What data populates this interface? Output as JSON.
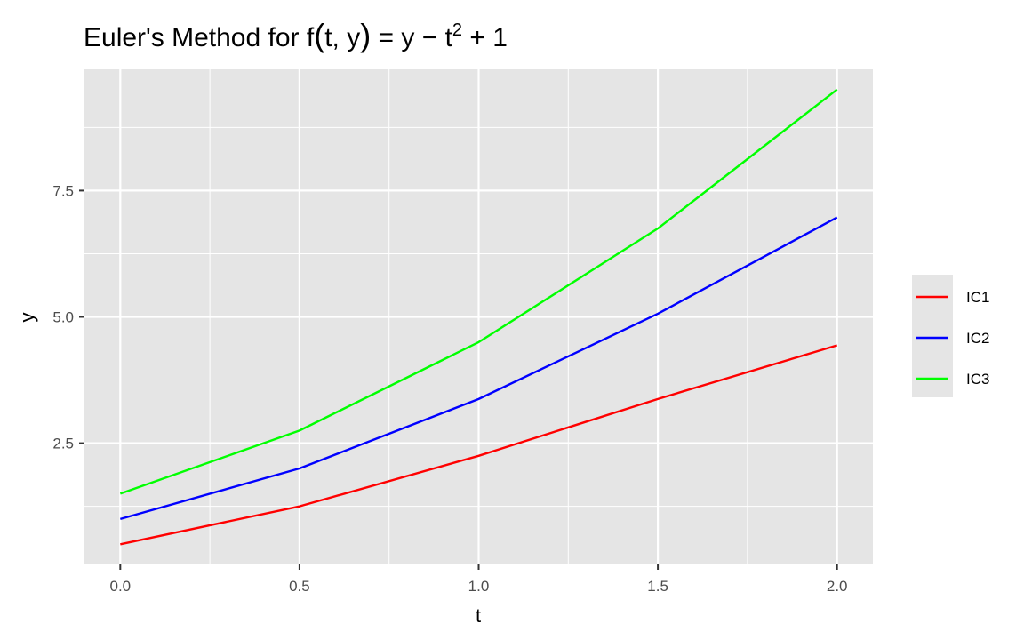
{
  "chart_data": {
    "type": "line",
    "title": "Euler's Method for f(t, y) = y − t² + 1",
    "title_parts": {
      "lead": "Euler's Method for ",
      "f": "f",
      "lparen": "(",
      "args": "t, y",
      "rparen": ")",
      "eq": " = y − t",
      "sup": "2",
      "tail": " + 1"
    },
    "xlabel": "t",
    "ylabel": "y",
    "x": [
      0.0,
      0.5,
      1.0,
      1.5,
      2.0
    ],
    "xlim": [
      -0.1,
      2.1
    ],
    "ylim": [
      0.1,
      9.9
    ],
    "x_ticks": [
      0.0,
      0.5,
      1.0,
      1.5,
      2.0
    ],
    "x_tick_labels": [
      "0.0",
      "0.5",
      "1.0",
      "1.5",
      "2.0"
    ],
    "y_ticks": [
      2.5,
      5.0,
      7.5
    ],
    "y_tick_labels": [
      "2.5",
      "5.0",
      "7.5"
    ],
    "grid": true,
    "legend_position": "right",
    "series": [
      {
        "name": "IC1",
        "color": "#ff0000",
        "values": [
          0.5,
          1.25,
          2.25,
          3.375,
          4.4375
        ]
      },
      {
        "name": "IC2",
        "color": "#0000ff",
        "values": [
          1.0,
          2.0,
          3.375,
          5.0625,
          6.96875
        ]
      },
      {
        "name": "IC3",
        "color": "#00ff00",
        "values": [
          1.5,
          2.75,
          4.5,
          6.75,
          9.5
        ]
      }
    ],
    "panel_background": "#e5e5e5",
    "grid_color": "#ffffff"
  }
}
